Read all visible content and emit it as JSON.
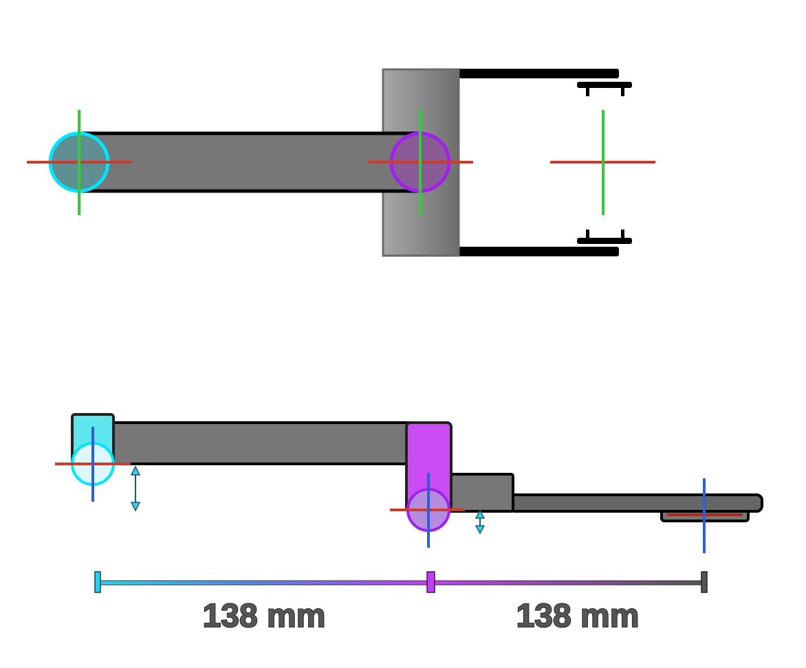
{
  "dimensions": {
    "first_segment": "138 mm",
    "second_segment": "138 mm"
  },
  "colors": {
    "joint_1": "#00e5ff",
    "joint_2": "#a020f0",
    "link": "#777777",
    "axis_red": "#d03a2a",
    "axis_green": "#33cc33",
    "axis_blue": "#2f5fd0",
    "outline": "#000000"
  }
}
